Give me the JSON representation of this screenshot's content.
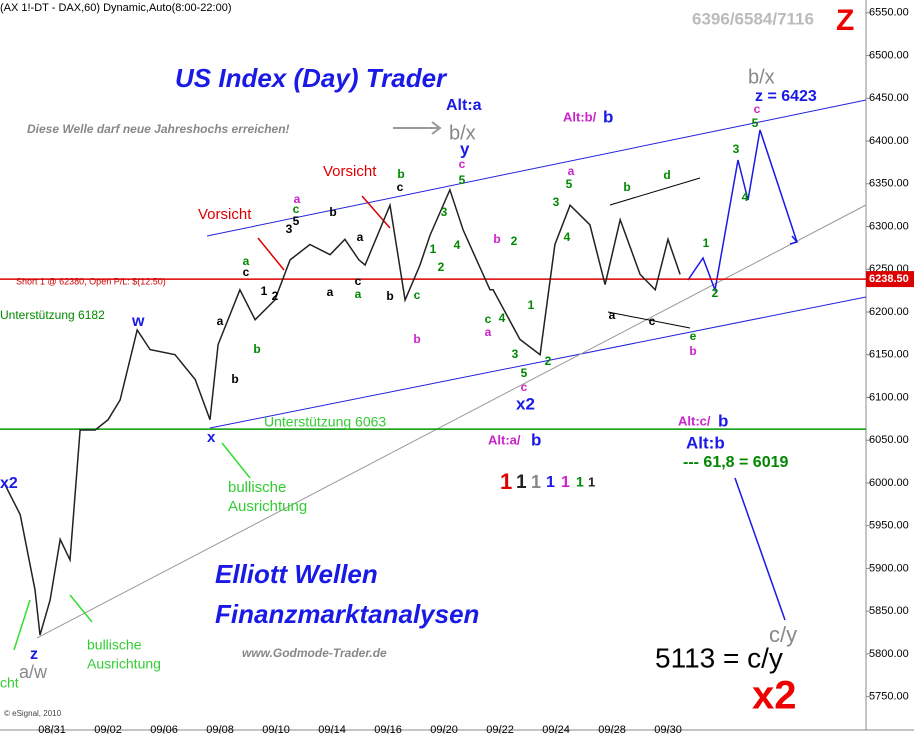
{
  "chart_data": {
    "type": "line",
    "color": "#222222",
    "x": [
      -1.68,
      -1.14,
      -0.61,
      -0.43,
      -0.07,
      0.29,
      0.64,
      1,
      1.54,
      2,
      2.43,
      3.04,
      3.5,
      4.39,
      5.11,
      5.64,
      5.93,
      6.71,
      7.25,
      7.96,
      8.5,
      9.21,
      9.93,
      10.46,
      10.96,
      11.18,
      12.07,
      12.61,
      13.14,
      13.5,
      14.21,
      14.68,
      15.64,
      15.75,
      16.71,
      17.43,
      17.96,
      18.5,
      19.21,
      19.75,
      20.29,
      21,
      21.54,
      22,
      22.43
    ],
    "values": [
      5998,
      5963,
      5875,
      5822,
      5863,
      5934,
      5910,
      6062,
      6062,
      6074,
      6097,
      6179,
      6156,
      6150,
      6121,
      6074,
      6162,
      6226,
      6191,
      6214,
      6261,
      6279,
      6267,
      6285,
      6261,
      6255,
      6325,
      6214,
      6255,
      6290,
      6343,
      6296,
      6226,
      6226,
      6168,
      6150,
      6279,
      6325,
      6302,
      6232,
      6308,
      6244,
      6226,
      6285,
      6244
    ],
    "xlim": [
      -1.86,
      29.07
    ],
    "ylim": [
      5711,
      6565
    ],
    "xticks": [
      {
        "value": 0,
        "label": "08/31"
      },
      {
        "value": 2,
        "label": "09/02"
      },
      {
        "value": 4,
        "label": "09/06"
      },
      {
        "value": 6,
        "label": "09/08"
      },
      {
        "value": 8,
        "label": "09/10"
      },
      {
        "value": 10,
        "label": "09/14"
      },
      {
        "value": 12,
        "label": "09/16"
      },
      {
        "value": 14,
        "label": "09/20"
      },
      {
        "value": 16,
        "label": "09/22"
      },
      {
        "value": 18,
        "label": "09/24"
      },
      {
        "value": 20,
        "label": "09/28"
      },
      {
        "value": 22,
        "label": "09/30"
      }
    ],
    "yticks": [
      {
        "value": 5750,
        "label": "5750.00"
      },
      {
        "value": 5800,
        "label": "5800.00"
      },
      {
        "value": 5850,
        "label": "5850.00"
      },
      {
        "value": 5900,
        "label": "5900.00"
      },
      {
        "value": 5950,
        "label": "5950.00"
      },
      {
        "value": 6000,
        "label": "6000.00"
      },
      {
        "value": 6050,
        "label": "6050.00"
      },
      {
        "value": 6100,
        "label": "6100.00"
      },
      {
        "value": 6150,
        "label": "6150.00"
      },
      {
        "value": 6200,
        "label": "6200.00"
      },
      {
        "value": 6250,
        "label": "6250.00"
      },
      {
        "value": 6300,
        "label": "6300.00"
      },
      {
        "value": 6350,
        "label": "6350.00"
      },
      {
        "value": 6400,
        "label": "6400.00"
      },
      {
        "value": 6450,
        "label": "6450.00"
      },
      {
        "value": 6500,
        "label": "6500.00"
      },
      {
        "value": 6550,
        "label": "6550.00"
      }
    ],
    "hlines": [
      {
        "value": 6238.5,
        "label": "6238.50",
        "color": "#dd0000"
      },
      {
        "value": 6063,
        "color": "#009900"
      }
    ],
    "annotations": [
      "US Index (Day) Trader",
      "Alt:a",
      "Diese Welle darf neue Jahreshochs  erreichen!",
      "b/x",
      "y",
      "Alt:b/",
      "b",
      "b/x",
      "z = 6423",
      "Vorsicht",
      "Vorsicht",
      "Unterstützung 6182",
      "w",
      "Unterstützung 6063",
      "x",
      "x2",
      "Alt:a/",
      "b",
      "Alt:c/",
      "b",
      "Alt:b",
      "--- 61,8 = 6019",
      "1",
      "1",
      "1",
      "1",
      "1",
      "1",
      "1",
      "bullische",
      "Ausrichtung",
      "x2",
      "Elliott Wellen",
      "Finanzmarktanalysen",
      "bullische",
      "Ausrichtung",
      "www.Godmode-Trader.de",
      "c/y",
      "5113 = c/y",
      "x2",
      "z",
      "a/w",
      "cht",
      "© eSignal, 2010",
      "(AX 1!-DT - DAX,60) Dynamic,Auto(8:00-22:00)",
      "6396/6584/7116",
      "Z",
      "Short 1 @ 62380, Open P/L: $(12.50)"
    ],
    "wave_labels": [
      "b",
      "c",
      "a",
      "c",
      "5",
      "3",
      "a",
      "c",
      "1",
      "2",
      "a",
      "b",
      "b",
      "a",
      "c",
      "a",
      "b",
      "a",
      "b",
      "3",
      "1",
      "4",
      "2",
      "5",
      "c",
      "b",
      "2",
      "4",
      "1",
      "a",
      "c",
      "3",
      "5",
      "c",
      "2",
      "3",
      "5",
      "a",
      "4",
      "b",
      "d",
      "a",
      "c",
      "e",
      "b",
      "c",
      "b",
      "1",
      "2",
      "3",
      "4",
      "c",
      "5"
    ]
  }
}
